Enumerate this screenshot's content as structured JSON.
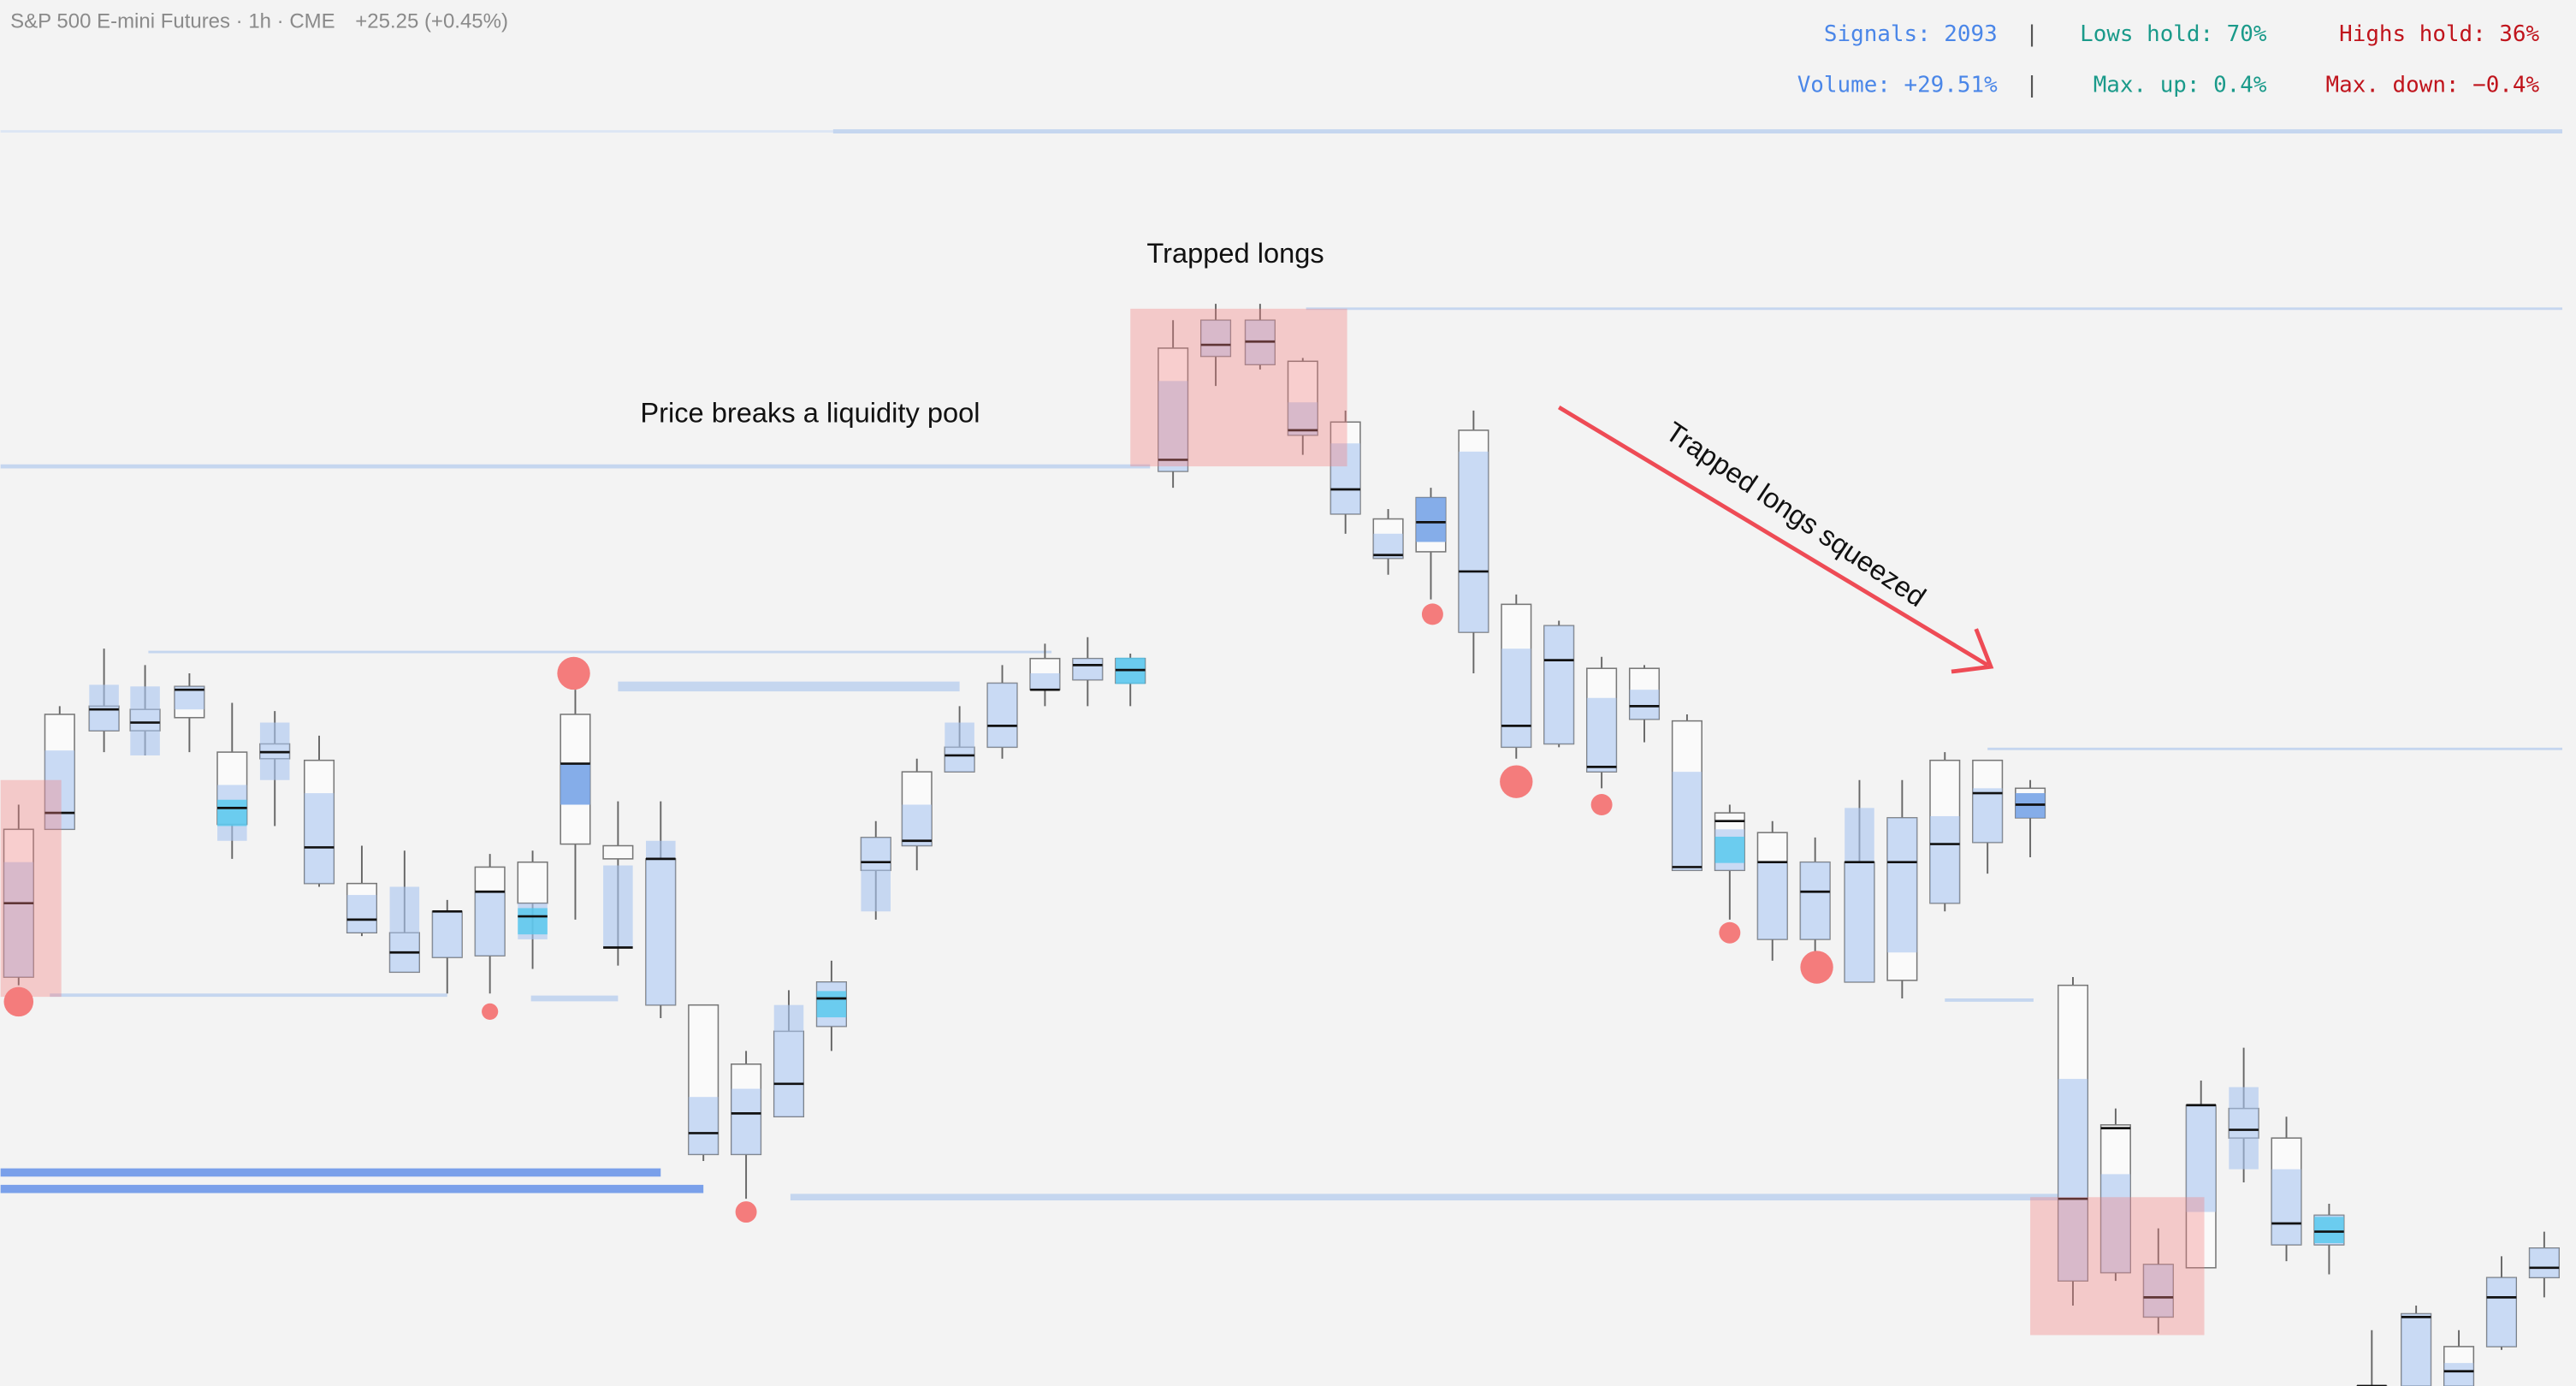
{
  "header": {
    "title": "S&P 500 E-mini Futures · 1h · CME",
    "change": "+25.25 (+0.45%)"
  },
  "stats": {
    "separator": "|",
    "rows": [
      [
        "Signals: 2093",
        "Lows hold: 70%",
        "Highs hold: 36%"
      ],
      [
        "Volume: +29.51%",
        "Max. up: 0.4%",
        "Max. down: −0.4%"
      ]
    ]
  },
  "annotations": [
    "Trapped longs",
    "Price breaks a liquidity pool",
    "Trapped longs squeezed"
  ]
}
